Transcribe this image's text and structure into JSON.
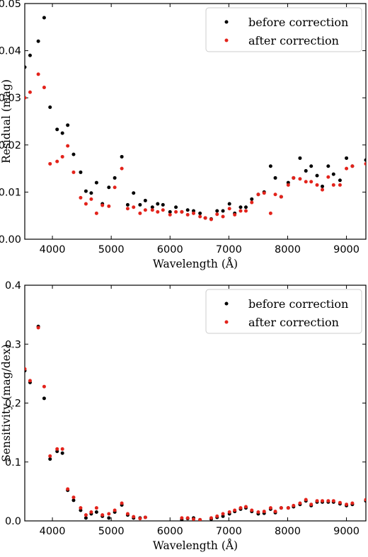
{
  "colors": {
    "before": "#000000",
    "after": "#e3231b"
  },
  "chart_data": [
    {
      "type": "scatter",
      "title": "",
      "xlabel": "Wavelength (Å)",
      "ylabel": "Residual (mag)",
      "xlim": [
        3530,
        9330
      ],
      "ylim": [
        0.0,
        0.05
      ],
      "xticks": [
        4000,
        5000,
        6000,
        7000,
        8000,
        9000
      ],
      "xtick_labels": [
        "4000",
        "5000",
        "6000",
        "7000",
        "8000",
        "9000"
      ],
      "yticks": [
        0.0,
        0.01,
        0.02,
        0.03,
        0.04,
        0.05
      ],
      "ytick_labels": [
        "0.00",
        "0.01",
        "0.02",
        "0.03",
        "0.04",
        "0.05"
      ],
      "grid": false,
      "legend_position": "top-right",
      "series": [
        {
          "name": "before correction",
          "color": "#000000",
          "x": [
            3530,
            3620,
            3760,
            3860,
            3960,
            4080,
            4170,
            4260,
            4360,
            4480,
            4570,
            4660,
            4750,
            4850,
            4960,
            5060,
            5180,
            5280,
            5380,
            5490,
            5580,
            5700,
            5790,
            5880,
            6000,
            6100,
            6200,
            6300,
            6400,
            6510,
            6600,
            6700,
            6800,
            6900,
            7010,
            7100,
            7200,
            7290,
            7390,
            7500,
            7600,
            7710,
            7790,
            7890,
            8010,
            8100,
            8210,
            8310,
            8400,
            8500,
            8590,
            8690,
            8780,
            8890,
            9000,
            9100,
            9330
          ],
          "y": [
            0.0365,
            0.039,
            0.042,
            0.047,
            0.028,
            0.0233,
            0.0225,
            0.0242,
            0.018,
            0.0142,
            0.0102,
            0.0098,
            0.012,
            0.0075,
            0.011,
            0.013,
            0.0175,
            0.0073,
            0.0098,
            0.0073,
            0.0082,
            0.0068,
            0.0075,
            0.0073,
            0.0058,
            0.0068,
            0.0058,
            0.0062,
            0.006,
            0.0055,
            0.0045,
            0.0043,
            0.006,
            0.006,
            0.0075,
            0.0055,
            0.0068,
            0.0068,
            0.0085,
            0.0095,
            0.01,
            0.0155,
            0.013,
            0.009,
            0.012,
            0.013,
            0.0172,
            0.0145,
            0.0155,
            0.0135,
            0.0112,
            0.0155,
            0.0138,
            0.0125,
            0.0172,
            0.0155,
            0.0168
          ]
        },
        {
          "name": "after correction",
          "color": "#e3231b",
          "x": [
            3530,
            3620,
            3760,
            3860,
            3960,
            4080,
            4170,
            4260,
            4360,
            4480,
            4570,
            4660,
            4750,
            4850,
            4960,
            5060,
            5180,
            5280,
            5380,
            5490,
            5580,
            5700,
            5790,
            5880,
            6000,
            6100,
            6200,
            6300,
            6400,
            6510,
            6600,
            6700,
            6800,
            6900,
            7010,
            7100,
            7200,
            7290,
            7390,
            7500,
            7600,
            7710,
            7790,
            7890,
            8010,
            8100,
            8210,
            8310,
            8400,
            8500,
            8590,
            8690,
            8780,
            8890,
            9000,
            9100,
            9330
          ],
          "y": [
            0.03,
            0.0312,
            0.035,
            0.0322,
            0.016,
            0.0165,
            0.0175,
            0.0198,
            0.0142,
            0.0088,
            0.0075,
            0.0085,
            0.0055,
            0.0072,
            0.007,
            0.011,
            0.015,
            0.0065,
            0.0068,
            0.0055,
            0.0062,
            0.0062,
            0.0058,
            0.0062,
            0.0052,
            0.0058,
            0.0058,
            0.0052,
            0.0055,
            0.0048,
            0.0045,
            0.0042,
            0.0053,
            0.0048,
            0.0065,
            0.0052,
            0.006,
            0.006,
            0.0078,
            0.0095,
            0.0098,
            0.0055,
            0.0095,
            0.009,
            0.0115,
            0.013,
            0.0128,
            0.0122,
            0.0122,
            0.0115,
            0.0105,
            0.0132,
            0.0115,
            0.0115,
            0.015,
            0.0155,
            0.016
          ]
        }
      ]
    },
    {
      "type": "scatter",
      "title": "",
      "xlabel": "Wavelength (Å)",
      "ylabel": "Sensitivity (mag/dex)",
      "xlim": [
        3530,
        9330
      ],
      "ylim": [
        0.0,
        0.4
      ],
      "xticks": [
        4000,
        5000,
        6000,
        7000,
        8000,
        9000
      ],
      "xtick_labels": [
        "4000",
        "5000",
        "6000",
        "7000",
        "8000",
        "9000"
      ],
      "yticks": [
        0.0,
        0.1,
        0.2,
        0.3,
        0.4
      ],
      "ytick_labels": [
        "0.0",
        "0.1",
        "0.2",
        "0.3",
        "0.4"
      ],
      "grid": false,
      "legend_position": "top-right",
      "series": [
        {
          "name": "before correction",
          "color": "#000000",
          "x": [
            3530,
            3620,
            3760,
            3860,
            3960,
            4080,
            4170,
            4260,
            4360,
            4480,
            4570,
            4660,
            4750,
            4850,
            4960,
            5060,
            5180,
            5280,
            5380,
            5490,
            5580,
            6200,
            6300,
            6400,
            6510,
            6700,
            6800,
            6900,
            7010,
            7100,
            7200,
            7290,
            7390,
            7500,
            7600,
            7710,
            7790,
            7890,
            8010,
            8100,
            8210,
            8310,
            8400,
            8500,
            8590,
            8690,
            8780,
            8890,
            9000,
            9100,
            9330
          ],
          "y": [
            0.255,
            0.235,
            0.33,
            0.208,
            0.105,
            0.118,
            0.115,
            0.052,
            0.035,
            0.018,
            0.005,
            0.012,
            0.015,
            0.008,
            0.005,
            0.015,
            0.027,
            0.01,
            0.005,
            0.005,
            0.006,
            0.002,
            0.004,
            0.005,
            0.002,
            0.003,
            0.006,
            0.008,
            0.012,
            0.016,
            0.02,
            0.022,
            0.016,
            0.012,
            0.013,
            0.02,
            0.014,
            0.022,
            0.022,
            0.024,
            0.028,
            0.034,
            0.026,
            0.032,
            0.032,
            0.032,
            0.032,
            0.029,
            0.026,
            0.028,
            0.034
          ]
        },
        {
          "name": "after correction",
          "color": "#e3231b",
          "x": [
            3530,
            3620,
            3760,
            3860,
            3960,
            4080,
            4170,
            4260,
            4360,
            4480,
            4570,
            4660,
            4750,
            4850,
            4960,
            5060,
            5180,
            5280,
            5380,
            5490,
            5580,
            6200,
            6300,
            6400,
            6510,
            6700,
            6800,
            6900,
            7010,
            7100,
            7200,
            7290,
            7390,
            7500,
            7600,
            7710,
            7790,
            7890,
            8010,
            8100,
            8210,
            8310,
            8400,
            8500,
            8590,
            8690,
            8780,
            8890,
            9000,
            9100,
            9330
          ],
          "y": [
            0.258,
            0.238,
            0.328,
            0.228,
            0.11,
            0.122,
            0.122,
            0.054,
            0.04,
            0.022,
            0.01,
            0.015,
            0.022,
            0.01,
            0.012,
            0.018,
            0.03,
            0.012,
            0.007,
            0.004,
            0.006,
            0.005,
            0.005,
            0.003,
            0.002,
            0.005,
            0.008,
            0.012,
            0.015,
            0.018,
            0.022,
            0.024,
            0.018,
            0.015,
            0.016,
            0.022,
            0.016,
            0.022,
            0.022,
            0.026,
            0.03,
            0.036,
            0.028,
            0.034,
            0.034,
            0.034,
            0.034,
            0.031,
            0.028,
            0.03,
            0.036
          ]
        }
      ]
    }
  ]
}
